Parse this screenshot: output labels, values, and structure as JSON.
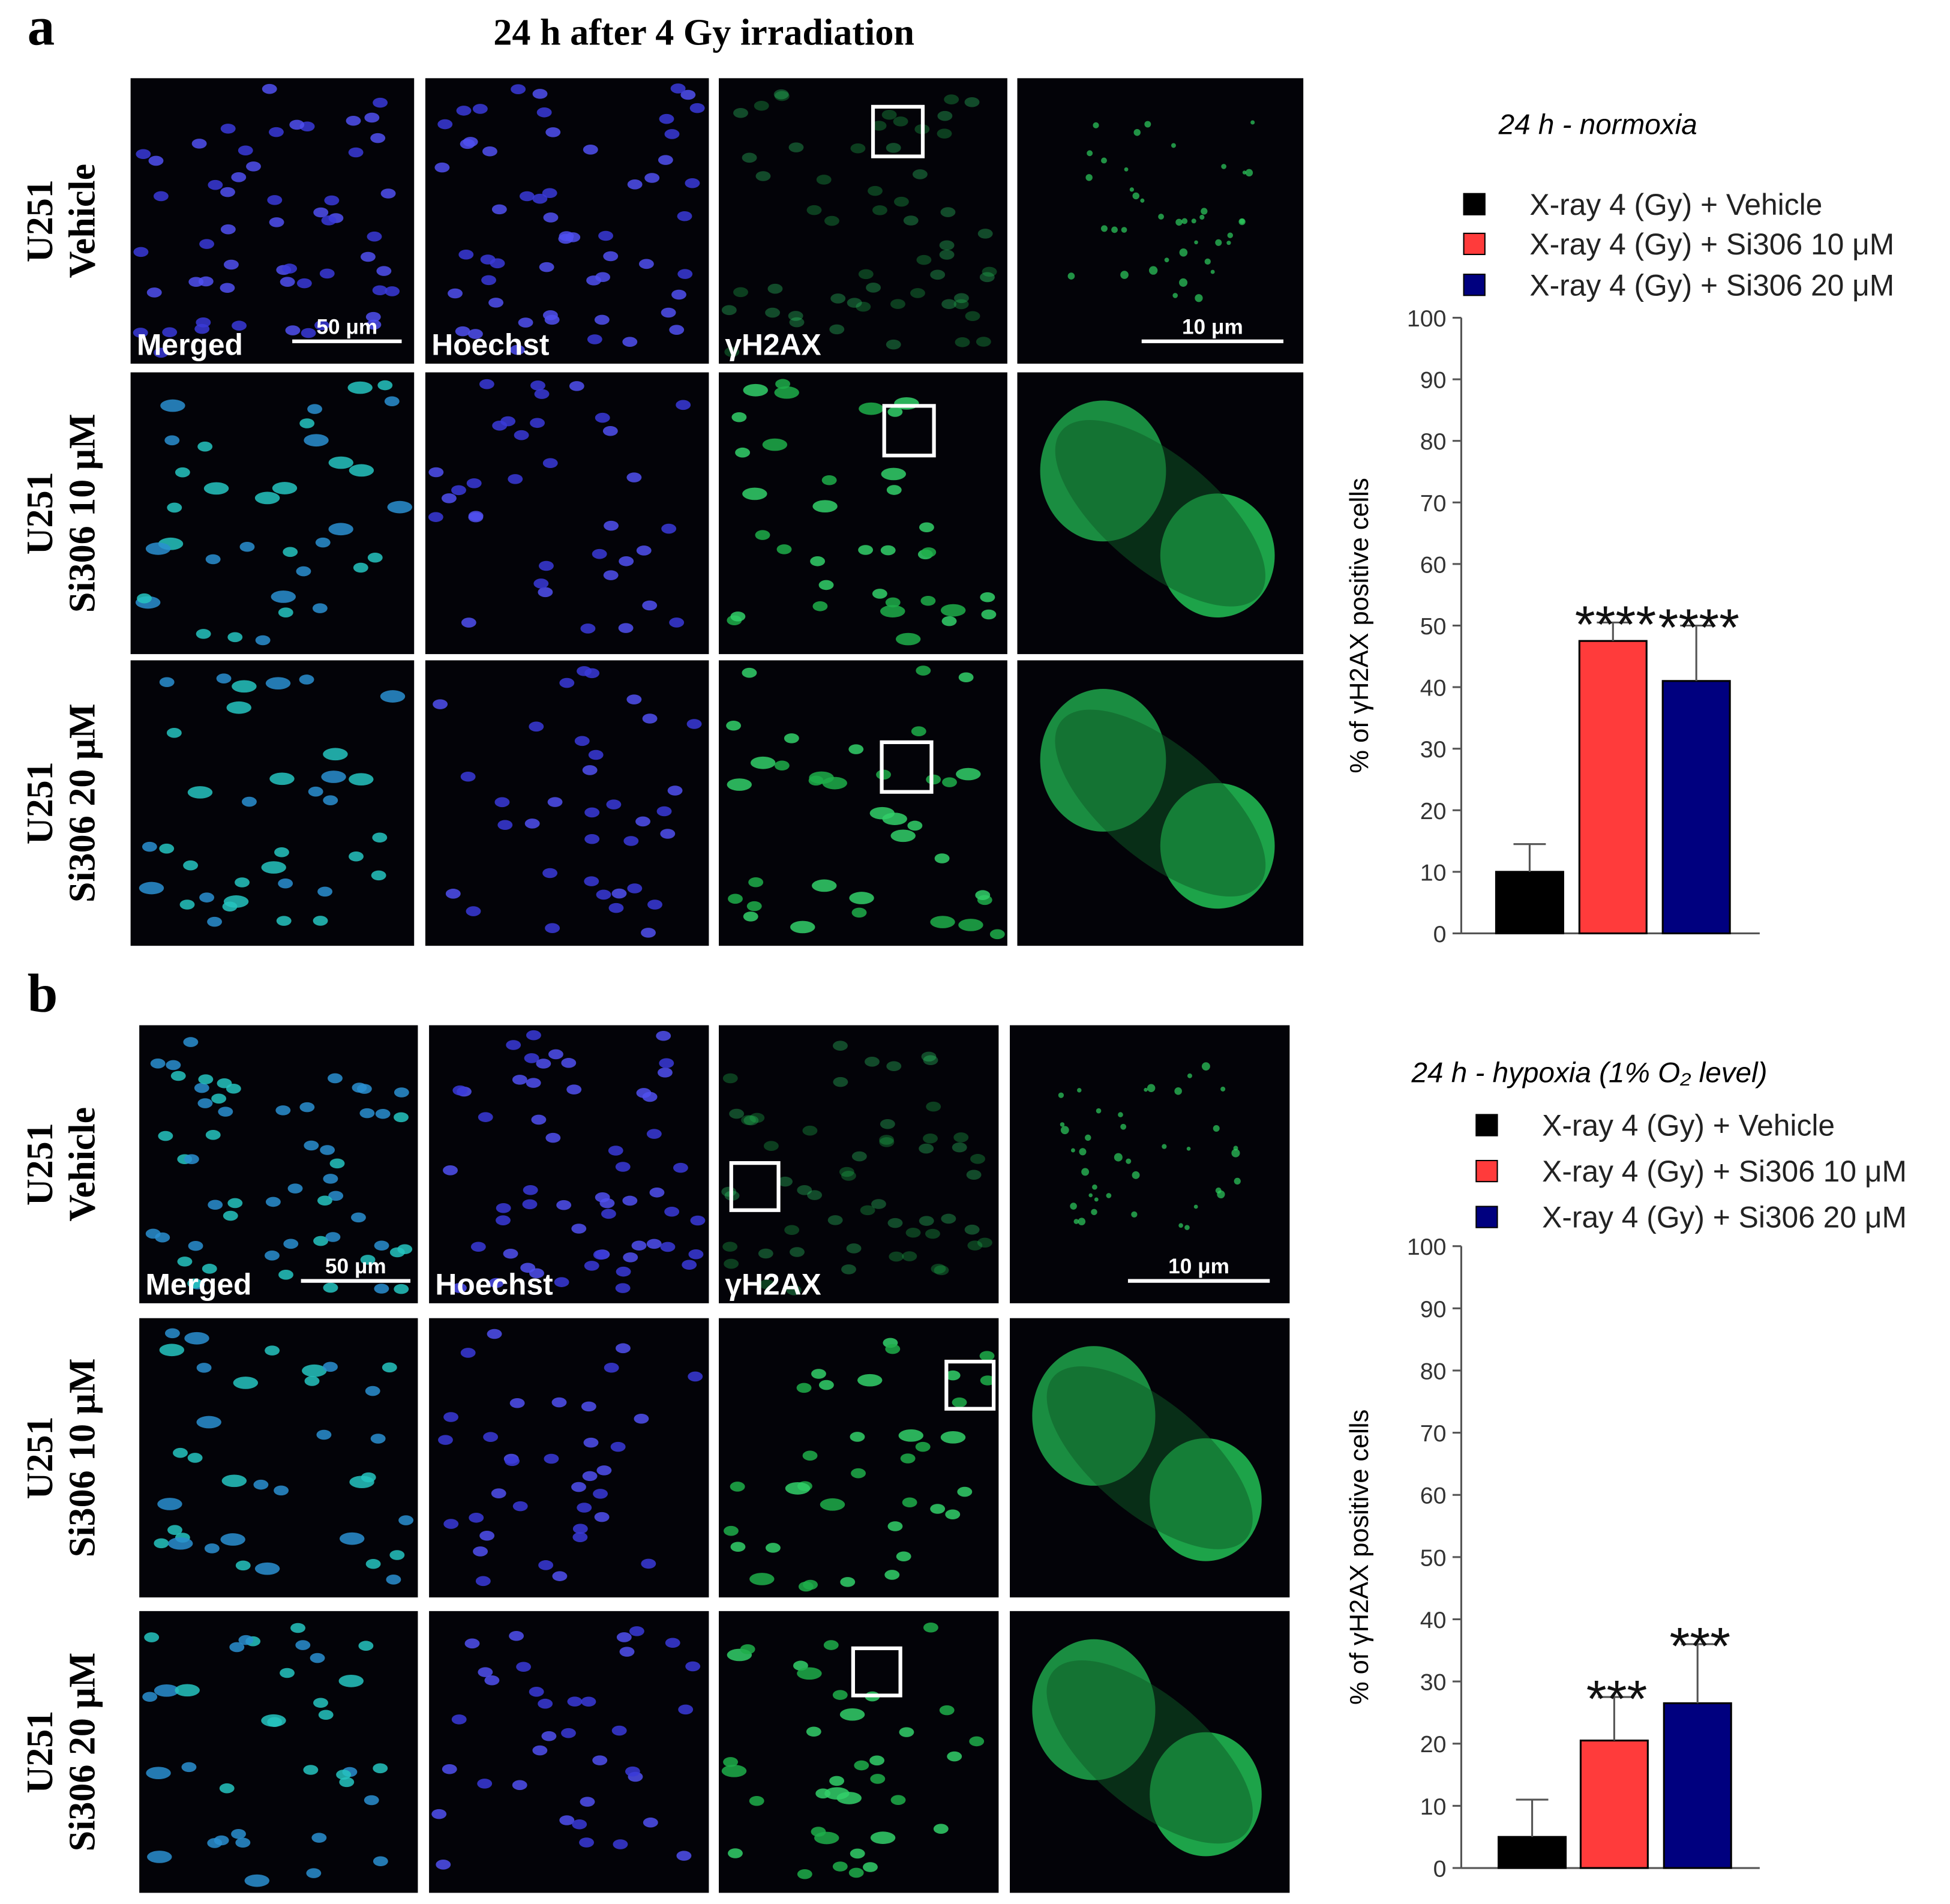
{
  "figure": {
    "panels": [
      {
        "label": "a",
        "heading": "24 h after 4 Gy irradiation",
        "rows": [
          [
            "U251",
            "Vehicle"
          ],
          [
            "U251",
            "Si306 10 μM"
          ],
          [
            "U251",
            "Si306 20 μM"
          ]
        ],
        "columns": [
          "Merged",
          "Hoechst",
          "γH2AX"
        ],
        "scale_bars": [
          "50 μm",
          "10 μm"
        ]
      },
      {
        "label": "b",
        "rows": [
          [
            "U251",
            "Vehicle"
          ],
          [
            "U251",
            "Si306 10 μM"
          ],
          [
            "U251",
            "Si306 20 μM"
          ]
        ],
        "columns": [
          "Merged",
          "Hoechst",
          "γH2AX"
        ],
        "scale_bars": [
          "50 μm",
          "10 μm"
        ]
      }
    ]
  },
  "chart_data": [
    {
      "type": "bar",
      "title": "24 h - normoxia",
      "y_label": "% of γH2AX positive cells",
      "ylim": [
        0,
        100
      ],
      "yticks": [
        0,
        10,
        20,
        30,
        40,
        50,
        60,
        70,
        80,
        90,
        100
      ],
      "series": [
        {
          "name": "X-ray 4 (Gy) + Vehicle",
          "color": "#000000",
          "values": [
            10
          ],
          "errors": [
            4.5
          ]
        },
        {
          "name": "X-ray 4 (Gy) + Si306 10 μM",
          "color": "#ff3b3b",
          "values": [
            47.5
          ],
          "errors": [
            3
          ],
          "annotation": "****"
        },
        {
          "name": "X-ray 4 (Gy) + Si306 20 μM",
          "color": "#00007f",
          "values": [
            41
          ],
          "errors": [
            9
          ],
          "annotation": "****"
        }
      ]
    },
    {
      "type": "bar",
      "title": "24 h - hypoxia (1% O₂ level)",
      "y_label": "% of γH2AX positive cells",
      "ylim": [
        0,
        100
      ],
      "yticks": [
        0,
        10,
        20,
        30,
        40,
        50,
        60,
        70,
        80,
        90,
        100
      ],
      "series": [
        {
          "name": "X-ray 4 (Gy) + Vehicle",
          "color": "#000000",
          "values": [
            5
          ],
          "errors": [
            6
          ]
        },
        {
          "name": "X-ray 4 (Gy) + Si306 10 μM",
          "color": "#ff3b3b",
          "values": [
            20.5
          ],
          "errors": [
            7
          ],
          "annotation": "***"
        },
        {
          "name": "X-ray 4 (Gy) + Si306 20 μM",
          "color": "#00007f",
          "values": [
            26.5
          ],
          "errors": [
            9.5
          ],
          "annotation": "***"
        }
      ]
    }
  ]
}
